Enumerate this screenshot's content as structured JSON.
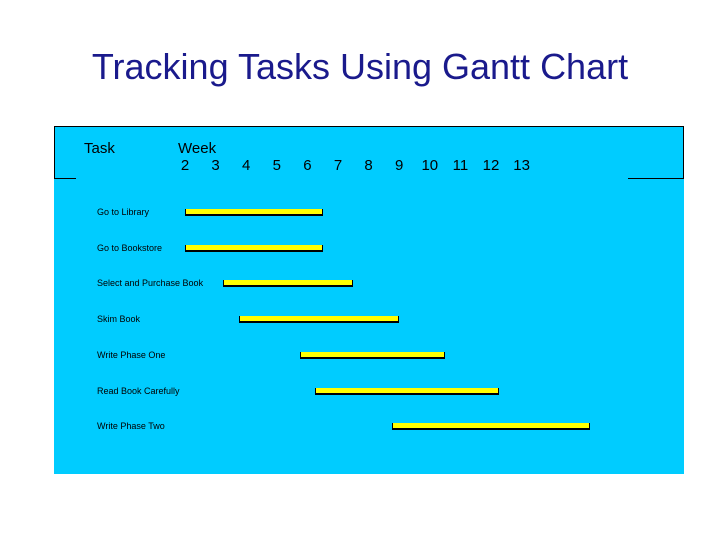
{
  "title": "Tracking Tasks Using Gantt Chart",
  "colors": {
    "panel": "#00ccff",
    "bar": "#ffff00",
    "title": "#1a1a8c"
  },
  "chart_data": {
    "type": "bar",
    "orientation": "horizontal-gantt",
    "task_header": "Task",
    "week_header": "Week",
    "x_ticks": [
      "2",
      "3",
      "4",
      "5",
      "6",
      "7",
      "8",
      "9",
      "10",
      "11",
      "12",
      "13"
    ],
    "xlim": [
      1.5,
      13.5
    ],
    "grid": false,
    "tasks": [
      {
        "label": "Go to Library",
        "start": 2.0,
        "end": 6.5
      },
      {
        "label": "Go to Bookstore",
        "start": 2.0,
        "end": 6.5
      },
      {
        "label": "Select and Purchase Book",
        "start": 3.25,
        "end": 7.5
      },
      {
        "label": "Skim Book",
        "start": 3.75,
        "end": 9.0
      },
      {
        "label": "Write Phase One",
        "start": 5.75,
        "end": 10.5
      },
      {
        "label": "Read Book Carefully",
        "start": 6.25,
        "end": 12.25
      },
      {
        "label": "Write Phase Two",
        "start": 8.75,
        "end": 15.25
      }
    ]
  }
}
